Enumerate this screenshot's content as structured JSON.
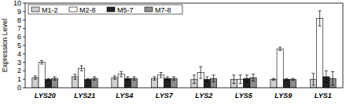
{
  "chart_data": {
    "type": "bar",
    "y_label": "Expression Level",
    "categories": [
      "LYS20",
      "LYS21",
      "LYS4",
      "LYS7",
      "LYS2",
      "LYS5",
      "LYS9",
      "LYS1"
    ],
    "series": [
      {
        "name": "M1-2",
        "color": "#d0d0d0",
        "values": [
          1.2,
          1.3,
          1.2,
          1.1,
          1.0,
          1.0,
          1.0,
          1.0
        ],
        "errors": [
          0.2,
          0.3,
          0.2,
          0.2,
          0.5,
          0.5,
          0.1,
          0.7
        ]
      },
      {
        "name": "M2-8",
        "color": "#ffffff",
        "values": [
          3.0,
          2.3,
          1.6,
          1.5,
          1.8,
          1.0,
          4.6,
          8.2
        ],
        "errors": [
          0.2,
          0.3,
          0.3,
          0.3,
          0.7,
          0.5,
          0.2,
          0.9
        ]
      },
      {
        "name": "M5-7",
        "color": "#222222",
        "values": [
          1.0,
          1.0,
          1.1,
          1.1,
          1.0,
          1.1,
          1.0,
          1.3
        ],
        "errors": [
          0.1,
          0.1,
          0.2,
          0.2,
          0.3,
          0.4,
          0.1,
          0.7
        ]
      },
      {
        "name": "M7-8",
        "color": "#8c8c8c",
        "values": [
          1.1,
          1.1,
          1.1,
          1.1,
          1.1,
          1.2,
          1.0,
          1.1
        ],
        "errors": [
          0.2,
          0.2,
          0.2,
          0.2,
          0.4,
          0.4,
          0.1,
          0.8
        ]
      }
    ],
    "ylim": [
      0,
      10
    ],
    "yticks": [
      0,
      1,
      2,
      3,
      4,
      5,
      6,
      7,
      8,
      9,
      10
    ],
    "grid": false,
    "legend": "top-left"
  }
}
